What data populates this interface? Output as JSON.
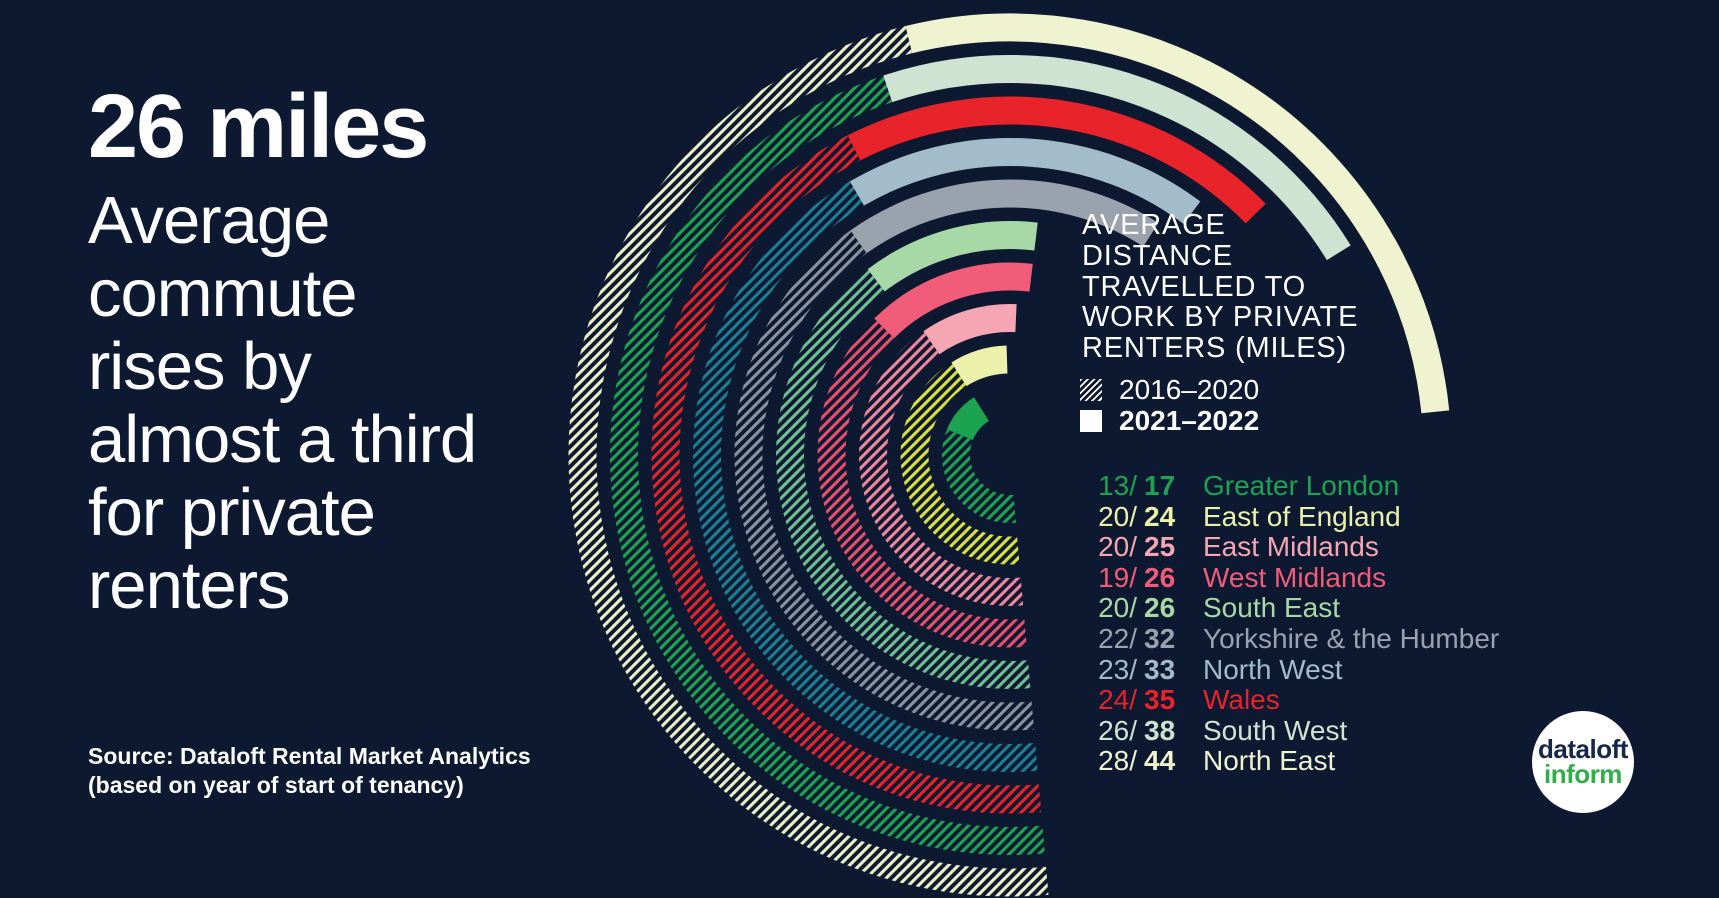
{
  "colors": {
    "background": "#0d1931",
    "text": "#ffffff",
    "legend_swatch": "#ffffff"
  },
  "headline": {
    "stat": "26 miles",
    "subtitle_lines": [
      "Average",
      "commute",
      "rises by",
      "almost a third",
      "for private",
      "renters"
    ],
    "source_lines": [
      "Source: Dataloft Rental Market Analytics",
      "(based on year of start of tenancy)"
    ]
  },
  "chart_data": {
    "type": "radial-bar",
    "title_lines": [
      "AVERAGE",
      "DISTANCE",
      "TRAVELLED TO",
      "WORK BY PRIVATE",
      "RENTERS (MILES)"
    ],
    "unit": "miles",
    "legend": [
      {
        "label": "2016–2020",
        "style": "hatched"
      },
      {
        "label": "2021–2022",
        "style": "solid"
      }
    ],
    "regions": [
      {
        "name": "Greater London",
        "v2016_2020": 13,
        "v2021_2022": 17,
        "color": "#1ca351",
        "hatch_color": "#1ca351"
      },
      {
        "name": "East of England",
        "v2016_2020": 20,
        "v2021_2022": 24,
        "color": "#ebf0ab",
        "hatch_color": "#d8e13f"
      },
      {
        "name": "East Midlands",
        "v2016_2020": 20,
        "v2021_2022": 25,
        "color": "#f5a6b2",
        "hatch_color": "#f0879c"
      },
      {
        "name": "West Midlands",
        "v2016_2020": 19,
        "v2021_2022": 26,
        "color": "#f15c78",
        "hatch_color": "#e94f6e"
      },
      {
        "name": "South East",
        "v2016_2020": 20,
        "v2021_2022": 26,
        "color": "#a8d8a5",
        "hatch_color": "#6fbf92"
      },
      {
        "name": "Yorkshire & the Humber",
        "v2016_2020": 22,
        "v2021_2022": 32,
        "color": "#9aa2ad",
        "hatch_color": "#8a93a0"
      },
      {
        "name": "North West",
        "v2016_2020": 23,
        "v2021_2022": 33,
        "color": "#a3bcc9",
        "hatch_color": "#1c7f93"
      },
      {
        "name": "Wales",
        "v2016_2020": 24,
        "v2021_2022": 35,
        "color": "#e82329",
        "hatch_color": "#e82329"
      },
      {
        "name": "South West",
        "v2016_2020": 26,
        "v2021_2022": 38,
        "color": "#cfe3d3",
        "hatch_color": "#1da452"
      },
      {
        "name": "North East",
        "v2016_2020": 28,
        "v2021_2022": 44,
        "color": "#eff3cf",
        "hatch_color": "#edf1c6"
      }
    ]
  },
  "logo": {
    "line1": "dataloft",
    "line2": "inform",
    "line1_color": "#16274a",
    "line2_color": "#2fae49"
  }
}
